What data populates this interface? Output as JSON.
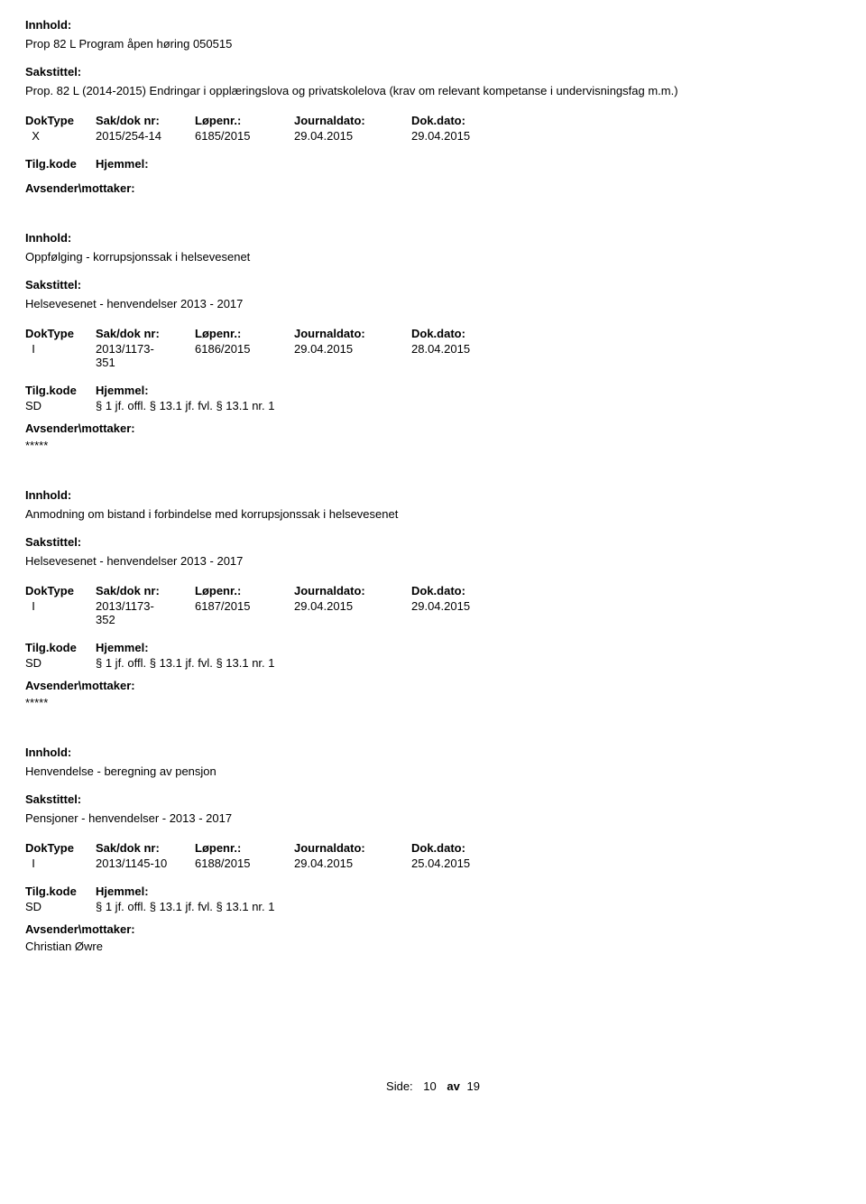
{
  "labels": {
    "innhold": "Innhold:",
    "sakstittel": "Sakstittel:",
    "doktype": "DokType",
    "sakdok": "Sak/dok nr:",
    "lopenr": "Løpenr.:",
    "journaldato": "Journaldato:",
    "dokdato": "Dok.dato:",
    "tilgkode": "Tilg.kode",
    "hjemmel": "Hjemmel:",
    "avsender": "Avsender\\mottaker:"
  },
  "records": [
    {
      "innhold": "Prop 82 L Program åpen høring 050515",
      "sakstittel": "Prop. 82 L (2014-2015) Endringar i opplæringslova og privatskolelova (krav om relevant kompetanse i undervisningsfag m.m.)",
      "doktype": "X",
      "sakdok": "2015/254-14",
      "lopenr": "6185/2015",
      "journaldato": "29.04.2015",
      "dokdato": "29.04.2015",
      "tilgkode": "",
      "hjemmel": "",
      "avsender": ""
    },
    {
      "innhold": "Oppfølging - korrupsjonssak i helsevesenet",
      "sakstittel": "Helsevesenet - henvendelser 2013 - 2017",
      "doktype": "I",
      "sakdok": "2013/1173-351",
      "lopenr": "6186/2015",
      "journaldato": "29.04.2015",
      "dokdato": "28.04.2015",
      "tilgkode": "SD",
      "hjemmel": "§ 1 jf. offl. § 13.1 jf. fvl. § 13.1 nr. 1",
      "avsender": "*****"
    },
    {
      "innhold": "Anmodning om bistand i forbindelse med korrupsjonssak i helsevesenet",
      "sakstittel": "Helsevesenet - henvendelser 2013 - 2017",
      "doktype": "I",
      "sakdok": "2013/1173-352",
      "lopenr": "6187/2015",
      "journaldato": "29.04.2015",
      "dokdato": "29.04.2015",
      "tilgkode": "SD",
      "hjemmel": "§ 1 jf. offl. § 13.1 jf. fvl. § 13.1 nr. 1",
      "avsender": "*****"
    },
    {
      "innhold": "Henvendelse - beregning av pensjon",
      "sakstittel": "Pensjoner - henvendelser - 2013 - 2017",
      "doktype": "I",
      "sakdok": "2013/1145-10",
      "lopenr": "6188/2015",
      "journaldato": "29.04.2015",
      "dokdato": "25.04.2015",
      "tilgkode": "SD",
      "hjemmel": "§ 1 jf. offl. § 13.1 jf. fvl. § 13.1 nr. 1",
      "avsender": "Christian Øwre"
    }
  ],
  "footer": {
    "side_label": "Side:",
    "page": "10",
    "av": "av",
    "total": "19"
  }
}
